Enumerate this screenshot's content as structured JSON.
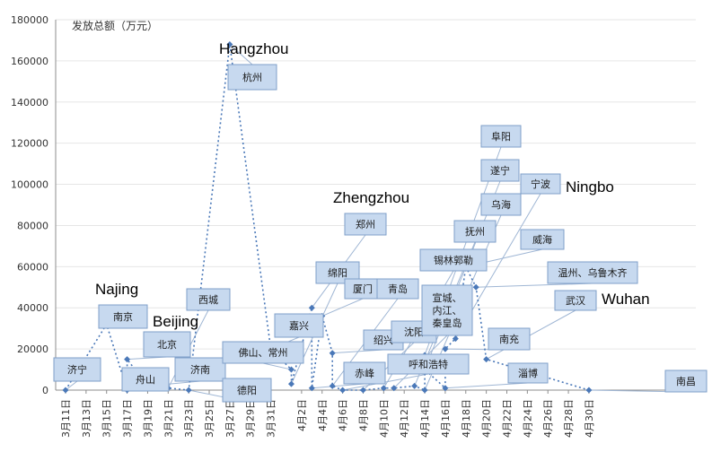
{
  "chart_data": {
    "type": "scatter",
    "ylabel": "发放总额（万元）",
    "ylim": [
      0,
      180000
    ],
    "grid": false,
    "y_ticks": [
      "0",
      "20000",
      "40000",
      "60000",
      "80000",
      "100000",
      "120000",
      "140000",
      "160000",
      "180000"
    ],
    "x_ticks": [
      "3月11日",
      "3月13日",
      "3月15日",
      "3月17日",
      "3月19日",
      "3月21日",
      "3月23日",
      "3月25日",
      "3月27日",
      "3月29日",
      "3月31日",
      "4月2日",
      "4月4日",
      "4月6日",
      "4月8日",
      "4月10日",
      "4月12日",
      "4月14日",
      "4月16日",
      "4月18日",
      "4月20日",
      "4月22日",
      "4月24日",
      "4月26日",
      "4月28日",
      "4月30日"
    ],
    "series": [
      {
        "points": [
          {
            "x": "3月11日",
            "y": 0,
            "label": "济宁"
          },
          {
            "x": "3月15日",
            "y": 32000,
            "label": "南京"
          },
          {
            "x": "3月17日",
            "y": 0,
            "label": "舟山"
          },
          {
            "x": "3月17日",
            "y": 15000,
            "label": "北京"
          },
          {
            "x": "3月19日",
            "y": 2000,
            "label": "济南"
          },
          {
            "x": "3月21日",
            "y": 1000,
            "label": "西城"
          },
          {
            "x": "3月23日",
            "y": 0,
            "label": "德阳"
          },
          {
            "x": "3月27日",
            "y": 168000,
            "label": "杭州"
          },
          {
            "x": "3月31日",
            "y": 20000,
            "label": "嘉兴"
          },
          {
            "x": "4月1日",
            "y": 10000,
            "label": "佛山、常州"
          },
          {
            "x": "4月1日",
            "y": 3000,
            "label": "绵阳"
          },
          {
            "x": "4月3日",
            "y": 40000,
            "label": "郑州"
          },
          {
            "x": "4月3日",
            "y": 1000,
            "label": "赤峰"
          },
          {
            "x": "4月4日",
            "y": 36000,
            "label": "厦门"
          },
          {
            "x": "4月5日",
            "y": 18000,
            "label": "绍兴"
          },
          {
            "x": "4月5日",
            "y": 2000,
            "label": "青岛"
          },
          {
            "x": "4月6日",
            "y": 0,
            "label": "呼和浩特"
          },
          {
            "x": "4月8日",
            "y": 0,
            "label": "沈阳"
          },
          {
            "x": "4月10日",
            "y": 1000,
            "label": "锡林郭勒"
          },
          {
            "x": "4月11日",
            "y": 1000,
            "label": "宣城、内江、秦皇岛"
          },
          {
            "x": "4月13日",
            "y": 2000,
            "label": "抚州"
          },
          {
            "x": "4月14日",
            "y": 0,
            "label": "乌海"
          },
          {
            "x": "4月14日",
            "y": 17000,
            "label": "阜阳"
          },
          {
            "x": "4月14日",
            "y": 10000,
            "label": "遂宁"
          },
          {
            "x": "4月16日",
            "y": 1000,
            "label": "淄博"
          },
          {
            "x": "4月16日",
            "y": 20000,
            "label": "南充"
          },
          {
            "x": "4月17日",
            "y": 25000,
            "label": "宁波"
          },
          {
            "x": "4月18日",
            "y": 60000,
            "label": "威海"
          },
          {
            "x": "4月19日",
            "y": 50000,
            "label": "温州、乌鲁木齐"
          },
          {
            "x": "4月20日",
            "y": 15000,
            "label": "武汉"
          },
          {
            "x": "4月30日",
            "y": 0,
            "label": "南昌"
          }
        ]
      }
    ],
    "annotations": [
      "Hangzhou",
      "Najing",
      "Beijing",
      "Zhengzhou",
      "Ningbo",
      "Wuhan"
    ]
  }
}
